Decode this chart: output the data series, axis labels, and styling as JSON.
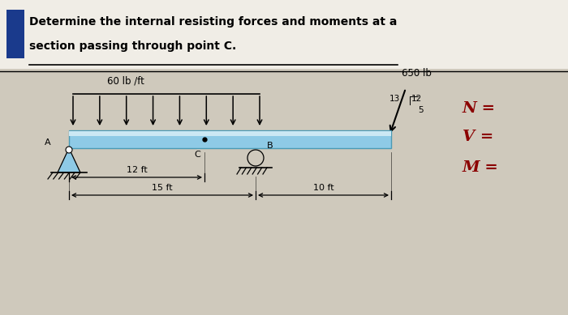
{
  "title_line1": "Determine the internal resisting forces and moments at a",
  "title_line2": "section passing through point C.",
  "bg_color": "#cfc9bc",
  "title_bg": "#f0ede6",
  "beam_fill": "#8ecae6",
  "beam_highlight": "#cce8f4",
  "beam_edge": "#4a9ab5",
  "dist_load_label": "60 lb /ft",
  "force_label": "650 lb",
  "dim_12": "12 ft",
  "dim_15": "15 ft",
  "dim_10": "10 ft",
  "label_C": "C",
  "label_B": "B",
  "label_A": "A",
  "label_N": "N =",
  "label_V": "V =",
  "label_M": "M =",
  "nvm_color": "#8b0000",
  "blue_sq_color": "#1a3a8c"
}
